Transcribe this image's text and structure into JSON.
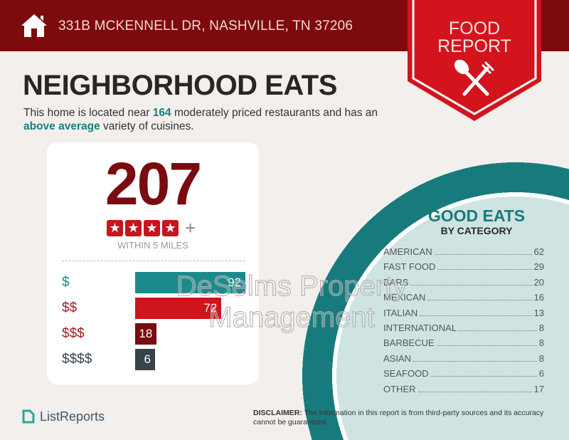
{
  "header": {
    "address": "331B MCKENNELL DR, NASHVILLE, TN 37206",
    "badge_line1": "FOOD",
    "badge_line2": "REPORT",
    "badge_icon": "spoon-fork-icon"
  },
  "title": "NEIGHBORHOOD EATS",
  "description": {
    "part1": "This home is located near ",
    "count": "164",
    "part2": " moderately priced restaurants and has an ",
    "variety": "above average",
    "part3": " variety of cuisines."
  },
  "summary": {
    "total": "207",
    "rating_stars": 4,
    "rating_suffix": "+",
    "radius_label": "WITHIN 5 MILES"
  },
  "price_tiers": [
    {
      "label": "$",
      "value": 92,
      "color": "#1a8a8c"
    },
    {
      "label": "$$",
      "value": 72,
      "color": "#d0141c"
    },
    {
      "label": "$$$",
      "value": 18,
      "color": "#7a0b10"
    },
    {
      "label": "$$$$",
      "value": 6,
      "color": "#37424a"
    }
  ],
  "categories_panel": {
    "title": "GOOD EATS",
    "subtitle": "BY CATEGORY",
    "items": [
      {
        "name": "AMERICAN",
        "count": "62"
      },
      {
        "name": "FAST FOOD",
        "count": "29"
      },
      {
        "name": "BARS",
        "count": "20"
      },
      {
        "name": "MEXICAN",
        "count": "16"
      },
      {
        "name": "ITALIAN",
        "count": "13"
      },
      {
        "name": "INTERNATIONAL",
        "count": "8"
      },
      {
        "name": "BARBECUE",
        "count": "8"
      },
      {
        "name": "ASIAN",
        "count": "8"
      },
      {
        "name": "SEAFOOD",
        "count": "6"
      },
      {
        "name": "OTHER",
        "count": "17"
      }
    ]
  },
  "footer": {
    "logo": "ListReports",
    "disclaimer_label": "DISCLAIMER:",
    "disclaimer_text": " The information in this report is from third-party sources and its accuracy cannot be guaranteed."
  },
  "watermark": {
    "line1": "DeSelms Property",
    "line2": "Management"
  }
}
